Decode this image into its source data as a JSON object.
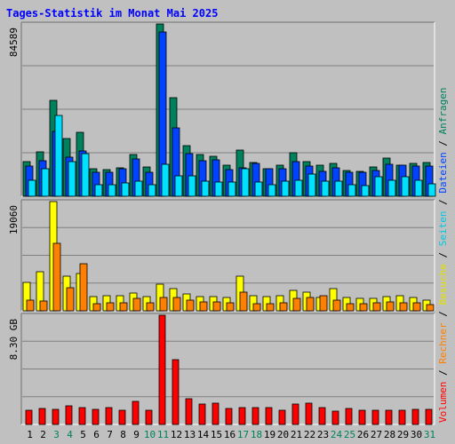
{
  "colors": {
    "background": "#c0c0c0",
    "title": "#0000ff",
    "grid": "#808080",
    "anfragen": "#00805c",
    "dateien": "#0042ff",
    "seiten": "#00e0ff",
    "besuche": "#ffff00",
    "rechner": "#ff8000",
    "volumen": "#ff0000",
    "weekend_day": "#00805c",
    "weekday": "#000000",
    "legend_separator": "#000000"
  },
  "chart_data": {
    "type": "bar",
    "title": "Tages-Statistik im Monat Mai 2025",
    "categories": [
      "1",
      "2",
      "3",
      "4",
      "5",
      "6",
      "7",
      "8",
      "9",
      "10",
      "11",
      "12",
      "13",
      "14",
      "15",
      "16",
      "17",
      "18",
      "19",
      "20",
      "21",
      "22",
      "23",
      "24",
      "25",
      "26",
      "27",
      "28",
      "29",
      "30",
      "31"
    ],
    "weekend_days": [
      "3",
      "4",
      "10",
      "11",
      "17",
      "18",
      "24",
      "25",
      "31"
    ],
    "legend": [
      {
        "name": "Volumen",
        "color": "#ff0000"
      },
      {
        "name": "Rechner",
        "color": "#ff8000"
      },
      {
        "name": "Besuche",
        "color": "#e0e000"
      },
      {
        "name": "Seiten",
        "color": "#00c8e0"
      },
      {
        "name": "Dateien",
        "color": "#0042ff"
      },
      {
        "name": "Anfragen",
        "color": "#00805c"
      }
    ],
    "panels": [
      {
        "id": "top",
        "max_label": "84589",
        "ylim": [
          0,
          84589
        ],
        "series": [
          {
            "name": "Anfragen",
            "key": "anfragen",
            "values": [
              16900,
              22000,
              47000,
              28500,
              31500,
              13600,
              13200,
              13900,
              20600,
              14300,
              84589,
              48500,
              25000,
              20400,
              19800,
              15100,
              22500,
              16600,
              13300,
              15400,
              21400,
              17200,
              15100,
              16000,
              12600,
              12400,
              14300,
              18900,
              15400,
              16000,
              16500
            ]
          },
          {
            "name": "Dateien",
            "key": "dateien",
            "values": [
              15000,
              17500,
              32000,
              19000,
              22200,
              11800,
              11800,
              13700,
              18500,
              11800,
              80500,
              33700,
              20800,
              17600,
              17700,
              13200,
              13900,
              16000,
              13300,
              13700,
              17200,
              14800,
              12200,
              14100,
              11800,
              11900,
              12500,
              15800,
              15200,
              14700,
              15000
            ]
          },
          {
            "name": "Seiten",
            "key": "seiten",
            "values": [
              8000,
              13400,
              39500,
              17000,
              20800,
              5800,
              5700,
              6400,
              7400,
              5800,
              15800,
              10200,
              9900,
              7200,
              6800,
              7000,
              13300,
              7100,
              5800,
              7400,
              7700,
              10700,
              7200,
              7200,
              5700,
              5400,
              9700,
              7700,
              9700,
              7800,
              6000
            ]
          }
        ]
      },
      {
        "id": "middle",
        "max_label": "19060",
        "ylim": [
          0,
          19060
        ],
        "series": [
          {
            "name": "Besuche",
            "key": "besuche",
            "values": [
              5000,
              6800,
              19060,
              6000,
              6500,
              2500,
              2600,
              2600,
              3100,
              2500,
              4600,
              3800,
              3000,
              2500,
              2500,
              2400,
              6100,
              2600,
              2500,
              2600,
              3500,
              3300,
              2400,
              3900,
              2400,
              2100,
              2200,
              2500,
              2600,
              2400,
              1900
            ]
          },
          {
            "name": "Rechner",
            "key": "rechner",
            "values": [
              1800,
              1700,
              11700,
              4100,
              8200,
              1300,
              1400,
              1400,
              2200,
              1400,
              2400,
              2300,
              1800,
              1500,
              1500,
              1400,
              3300,
              1300,
              1300,
              1400,
              2200,
              2400,
              2600,
              1900,
              1200,
              1300,
              1400,
              1500,
              1400,
              1400,
              1100
            ]
          }
        ]
      },
      {
        "id": "bottom",
        "max_label": "8.30 GB",
        "ylim": [
          0,
          8.3
        ],
        "unit": "GB",
        "series": [
          {
            "name": "Volumen",
            "key": "volumen",
            "values": [
              1.05,
              1.2,
              1.15,
              1.4,
              1.3,
              1.15,
              1.25,
              1.1,
              1.75,
              1.05,
              8.3,
              4.95,
              1.95,
              1.55,
              1.65,
              1.2,
              1.25,
              1.3,
              1.25,
              1.05,
              1.55,
              1.6,
              1.3,
              1.0,
              1.2,
              1.05,
              1.05,
              1.1,
              1.05,
              1.15,
              1.15
            ]
          }
        ]
      }
    ]
  }
}
